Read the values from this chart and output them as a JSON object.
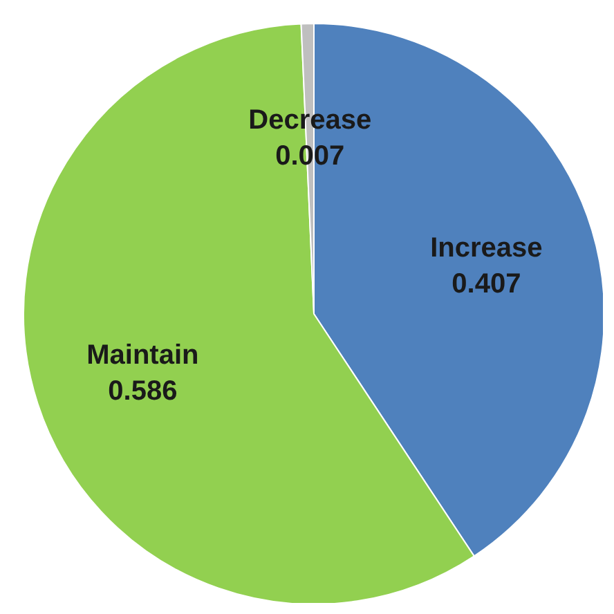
{
  "chart_data": {
    "type": "pie",
    "categories": [
      "Increase",
      "Maintain",
      "Decrease"
    ],
    "values": [
      0.407,
      0.586,
      0.007
    ],
    "colors": [
      "#4f81bd",
      "#92d050",
      "#bfbfbf"
    ],
    "data_labels": true,
    "legend": false
  }
}
